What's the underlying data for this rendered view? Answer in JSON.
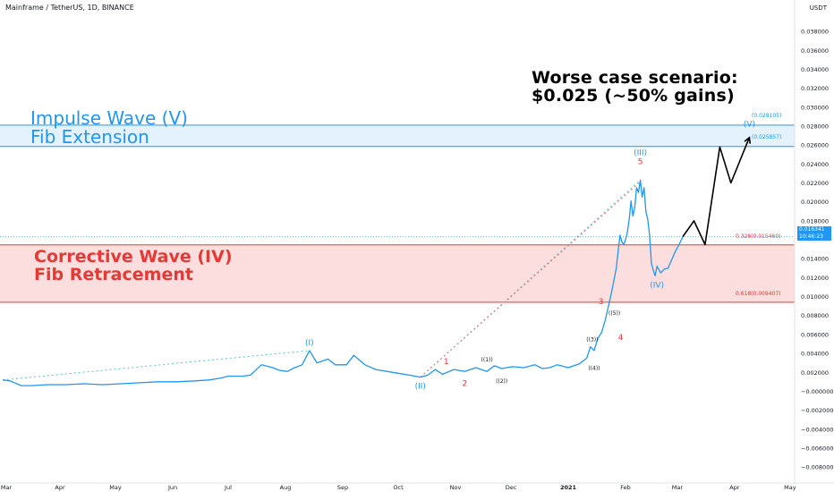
{
  "header": {
    "symbol": "Mainframe / TetherUS, 1D, BINANCE",
    "currency": "USDT"
  },
  "annotations": {
    "impulse_line1": "Impulse Wave (V)",
    "impulse_line2": "Fib Extension",
    "corrective_line1": "Corrective Wave (IV)",
    "corrective_line2": "Fib Retracement",
    "worse_line1": "Worse case scenario:",
    "worse_line2": "$0.025 (~50% gains)"
  },
  "fib_levels": {
    "upper_top": "(0.028105)",
    "upper_bottom": "(0.025857)",
    "lower_top": "0.328(0.015460)",
    "lower_bottom": "0.618(0.009407)"
  },
  "current_price": {
    "value": "0.016341",
    "countdown": "10:46:23"
  },
  "colors": {
    "price_line": "#2196f3",
    "impulse_zone": "#2196f3",
    "corrective_zone": "#e53935",
    "projection": "#000000"
  },
  "chart_data": {
    "type": "line",
    "title": "Mainframe / TetherUS, 1D, BINANCE",
    "xlabel": "",
    "ylabel": "USDT",
    "ylim": [
      -0.0095,
      0.04
    ],
    "grid": false,
    "x_tick_labels": [
      "Mar",
      "Apr",
      "May",
      "Jun",
      "Jul",
      "Aug",
      "Sep",
      "Oct",
      "Nov",
      "Dec",
      "2021",
      "Feb",
      "Mar",
      "Apr",
      "May"
    ],
    "x_tick_positions": [
      0,
      31,
      61,
      92,
      122,
      153,
      184,
      214,
      245,
      275,
      306,
      337,
      365,
      396,
      426
    ],
    "y_tick_labels": [
      "0.038000",
      "0.036000",
      "0.034000",
      "0.032000",
      "0.030000",
      "0.028000",
      "0.026000",
      "0.024000",
      "0.022000",
      "0.020000",
      "0.018000",
      "0.014000",
      "0.012000",
      "0.010000",
      "0.008000",
      "0.006000",
      "0.004000",
      "0.002000",
      "−0.000000",
      "−0.002000",
      "−0.004000",
      "−0.006000",
      "−0.008000"
    ],
    "series": [
      {
        "x": [
          0,
          4,
          10,
          16,
          24,
          34,
          44,
          54,
          64,
          74,
          84,
          94,
          104,
          112,
          118,
          122,
          126,
          130,
          134,
          140,
          146,
          150,
          154,
          158,
          162,
          166,
          170,
          176,
          180,
          186,
          190,
          196,
          202,
          208,
          214,
          220,
          226,
          230,
          234,
          238,
          244,
          250,
          256,
          262,
          266,
          270,
          276,
          282,
          288,
          292,
          296,
          300,
          306,
          312,
          316,
          318,
          320,
          322,
          324,
          326,
          328,
          330,
          332,
          333,
          334,
          335,
          336,
          337,
          338,
          339,
          340,
          341,
          342,
          343,
          344,
          345,
          346,
          347,
          348,
          349,
          350,
          351,
          352,
          353,
          354,
          356,
          358,
          360,
          362,
          364,
          366,
          368
        ],
        "values": [
          0.0012,
          0.0011,
          0.0006,
          0.0006,
          0.0007,
          0.0007,
          0.0008,
          0.0007,
          0.0008,
          0.0009,
          0.001,
          0.001,
          0.0011,
          0.0012,
          0.0014,
          0.0016,
          0.0016,
          0.0016,
          0.0017,
          0.0028,
          0.0025,
          0.0022,
          0.0021,
          0.0025,
          0.0028,
          0.0043,
          0.003,
          0.0034,
          0.0028,
          0.0028,
          0.0038,
          0.0028,
          0.0023,
          0.0021,
          0.0019,
          0.0017,
          0.0015,
          0.0017,
          0.0023,
          0.0018,
          0.0023,
          0.0021,
          0.0025,
          0.0021,
          0.0027,
          0.0024,
          0.0026,
          0.0025,
          0.0028,
          0.0024,
          0.0025,
          0.0028,
          0.0025,
          0.0029,
          0.0035,
          0.0047,
          0.0043,
          0.0056,
          0.0062,
          0.0075,
          0.0092,
          0.011,
          0.013,
          0.0148,
          0.0165,
          0.0158,
          0.0155,
          0.016,
          0.0168,
          0.0182,
          0.0201,
          0.0185,
          0.0195,
          0.0215,
          0.021,
          0.0223,
          0.0205,
          0.0215,
          0.019,
          0.0182,
          0.0165,
          0.0135,
          0.0128,
          0.0122,
          0.0132,
          0.0125,
          0.0129,
          0.013,
          0.0139,
          0.0148,
          0.0155,
          0.016341
        ]
      },
      {
        "name": "",
        "x": [
          368,
          374,
          380,
          388,
          394,
          404
        ],
        "values": [
          0.016341,
          0.018,
          0.0155,
          0.0258,
          0.022,
          0.0268
        ]
      }
    ],
    "zones": [
      {
        "low": 0.025857,
        "high": 0.028105
      },
      {
        "low": 0.009407,
        "high": 0.01546
      }
    ],
    "wave_labels": [
      {
        "text": "(I)",
        "x": 166,
        "y": 0.0043,
        "pos": "above",
        "color": "blue"
      },
      {
        "text": "(II)",
        "x": 226,
        "y": 0.0015,
        "pos": "below",
        "color": "blue"
      },
      {
        "text": "(III)",
        "x": 345,
        "y": 0.0223,
        "pos": "above",
        "color": "blue"
      },
      {
        "text": "(IV)",
        "x": 354,
        "y": 0.0122,
        "pos": "below",
        "color": "blue"
      },
      {
        "text": "(V)",
        "x": 404,
        "y": 0.0268,
        "pos": "above",
        "color": "blue"
      },
      {
        "text": "1",
        "x": 240,
        "y": 0.0023,
        "pos": "above",
        "color": "red"
      },
      {
        "text": "2",
        "x": 250,
        "y": 0.0018,
        "pos": "below",
        "color": "red"
      },
      {
        "text": "3",
        "x": 328,
        "y": 0.0092,
        "pos": "left",
        "color": "red"
      },
      {
        "text": "4",
        "x": 330,
        "y": 0.0062,
        "pos": "right",
        "color": "red"
      },
      {
        "text": "5",
        "x": 345,
        "y": 0.0223,
        "pos": "above",
        "color": "red"
      },
      {
        "text": "((1))",
        "x": 262,
        "y": 0.0026,
        "pos": "above",
        "color": "black"
      },
      {
        "text": "((2))",
        "x": 270,
        "y": 0.0021,
        "pos": "below",
        "color": "black"
      },
      {
        "text": "((3))",
        "x": 319,
        "y": 0.0047,
        "pos": "above",
        "color": "black"
      },
      {
        "text": "((4))",
        "x": 320,
        "y": 0.0035,
        "pos": "below",
        "color": "black"
      },
      {
        "text": "((5))",
        "x": 331,
        "y": 0.0075,
        "pos": "above",
        "color": "black"
      }
    ]
  }
}
